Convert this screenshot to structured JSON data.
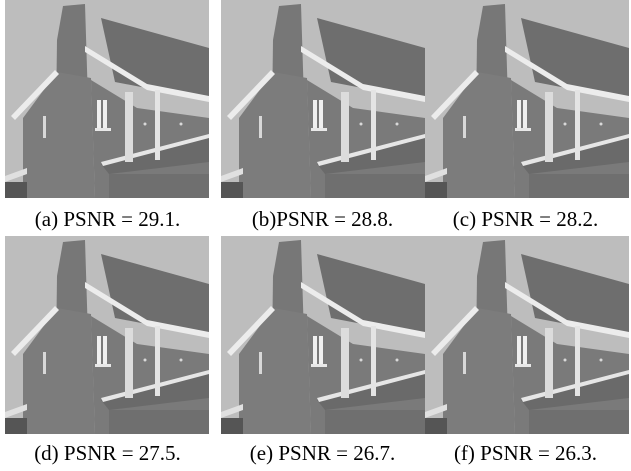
{
  "figures": [
    {
      "label": "(a)",
      "caption": "(a) PSNR = 29.1.",
      "psnr": 29.1
    },
    {
      "label": "(b)",
      "caption": "(b)PSNR = 28.8.",
      "psnr": 28.8
    },
    {
      "label": "(c)",
      "caption": "(c) PSNR = 28.2.",
      "psnr": 28.2
    },
    {
      "label": "(d)",
      "caption": "(d) PSNR = 27.5.",
      "psnr": 27.5
    },
    {
      "label": "(e)",
      "caption": "(e) PSNR = 26.7.",
      "psnr": 26.7
    },
    {
      "label": "(f)",
      "caption": "(f) PSNR = 26.3.",
      "psnr": 26.3
    }
  ]
}
